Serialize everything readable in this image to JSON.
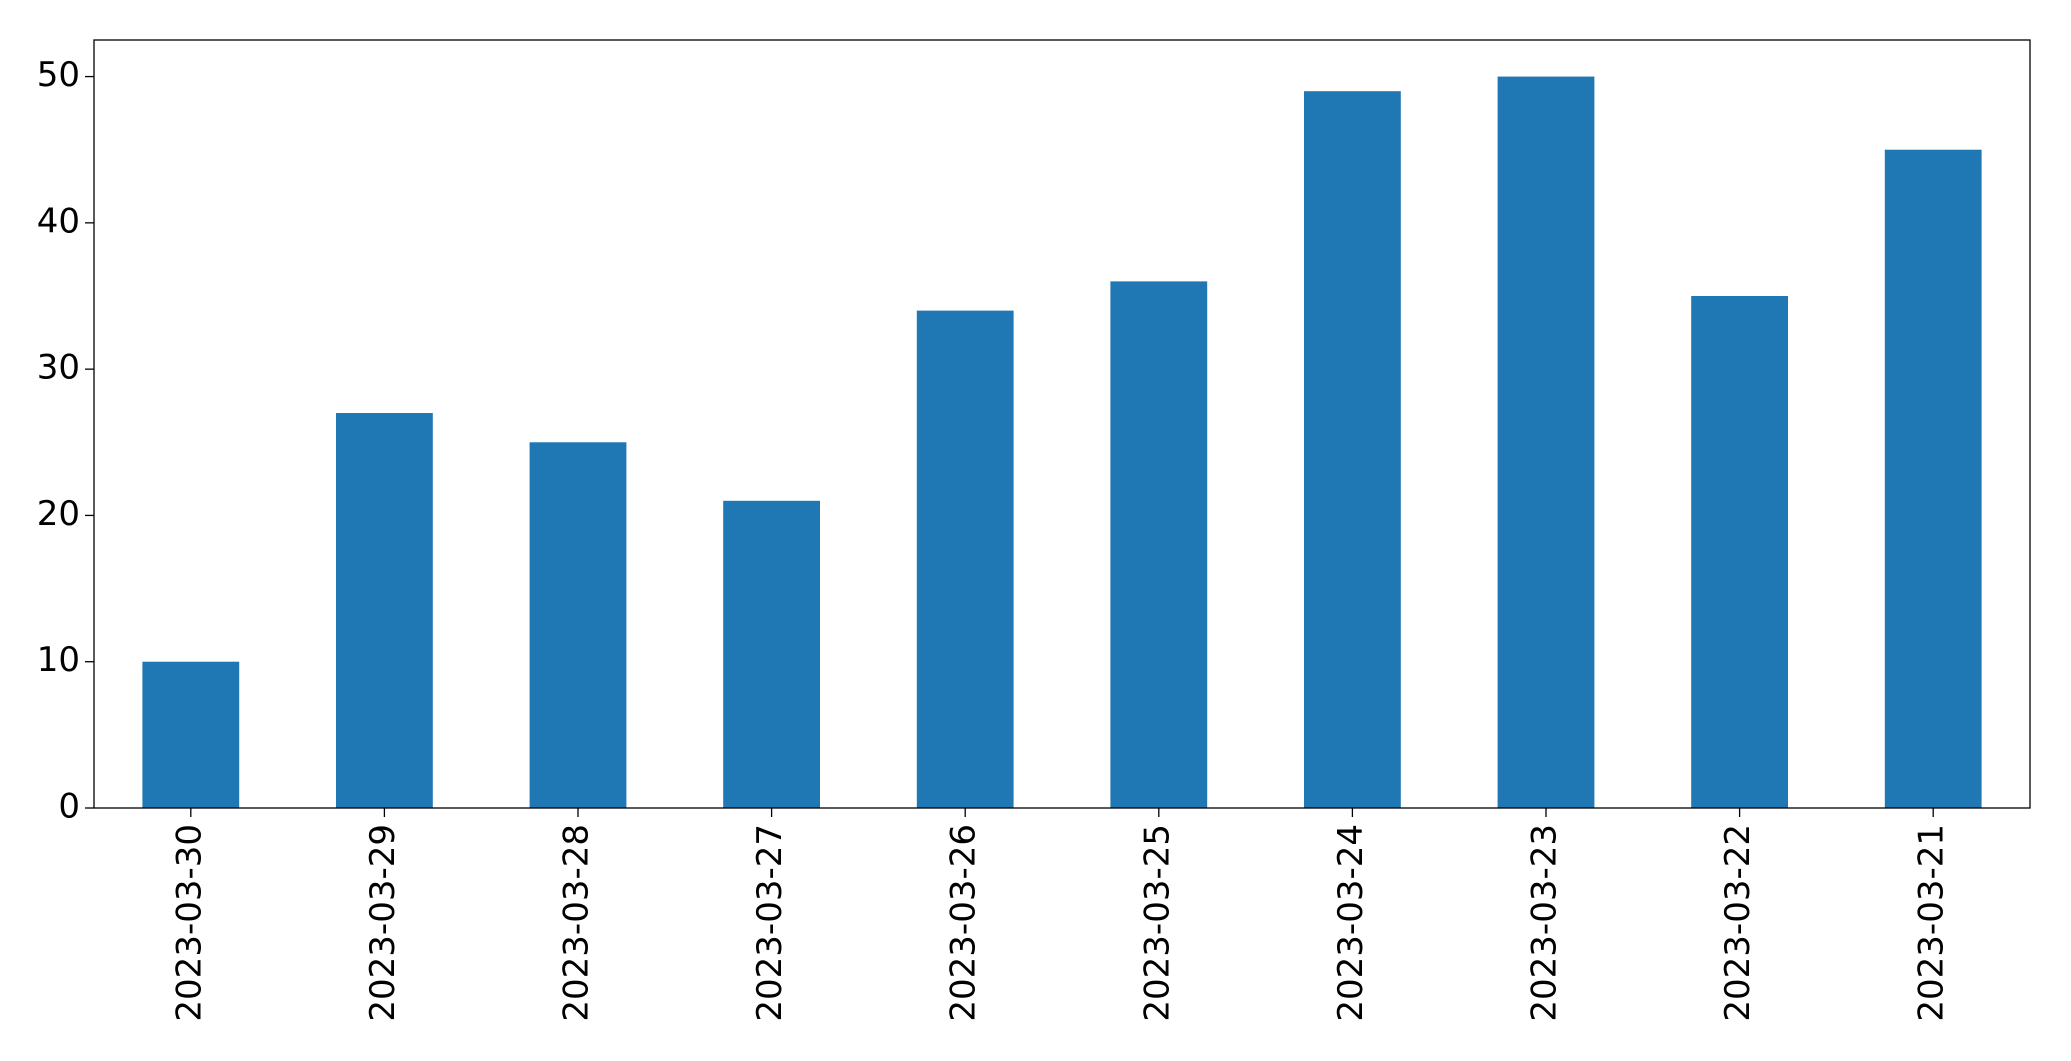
{
  "chart_data": {
    "type": "bar",
    "categories": [
      "2023-03-30",
      "2023-03-29",
      "2023-03-28",
      "2023-03-27",
      "2023-03-26",
      "2023-03-25",
      "2023-03-24",
      "2023-03-23",
      "2023-03-22",
      "2023-03-21"
    ],
    "values": [
      10,
      27,
      25,
      21,
      34,
      36,
      49,
      50,
      35,
      45
    ],
    "color": "#1f77b4",
    "ylim": [
      0,
      52.5
    ],
    "yticks": [
      0,
      10,
      20,
      30,
      40,
      50
    ],
    "grid": false
  }
}
